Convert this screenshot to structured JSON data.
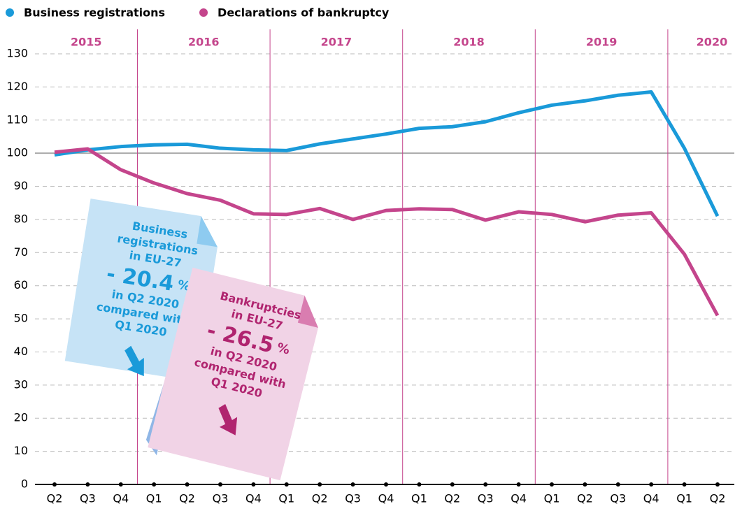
{
  "chart_data": {
    "type": "line",
    "categories": [
      "Q2",
      "Q3",
      "Q4",
      "Q1",
      "Q2",
      "Q3",
      "Q4",
      "Q1",
      "Q2",
      "Q3",
      "Q4",
      "Q1",
      "Q2",
      "Q3",
      "Q4",
      "Q1",
      "Q2",
      "Q3",
      "Q4",
      "Q1",
      "Q2"
    ],
    "year_groups": [
      {
        "label": "2015",
        "count": 3
      },
      {
        "label": "2016",
        "count": 4
      },
      {
        "label": "2017",
        "count": 4
      },
      {
        "label": "2018",
        "count": 4
      },
      {
        "label": "2019",
        "count": 4
      },
      {
        "label": "2020",
        "count": 2
      }
    ],
    "series": [
      {
        "name": "Business registrations",
        "color": "#1a9ad9",
        "values": [
          99.5,
          101,
          102,
          102.5,
          102.7,
          101.5,
          101,
          100.8,
          102.8,
          104.3,
          105.8,
          107.5,
          108,
          109.5,
          112.2,
          114.5,
          115.8,
          117.5,
          118.5,
          101.5,
          81
        ]
      },
      {
        "name": "Declarations of bankruptcy",
        "color": "#c4458c",
        "values": [
          100.3,
          101.3,
          95,
          91,
          87.8,
          85.8,
          81.7,
          81.5,
          83.3,
          80,
          82.7,
          83.2,
          83,
          79.8,
          82.3,
          81.5,
          79.3,
          81.3,
          82,
          69.5,
          51
        ]
      }
    ],
    "ylim": [
      0,
      130
    ],
    "yticks": [
      0,
      10,
      20,
      30,
      40,
      50,
      60,
      70,
      80,
      90,
      100,
      110,
      120,
      130
    ],
    "baseline": 100,
    "grid": true,
    "legend": "top-left",
    "annotations": [
      {
        "lines": [
          "Business",
          "registrations",
          "in EU-27"
        ],
        "value_text": "- 20.4",
        "unit": "%",
        "after": [
          "in Q2 2020",
          "compared with",
          "Q1 2020"
        ],
        "color": "#1a9ad9"
      },
      {
        "lines": [
          "Bankruptcies",
          "in  EU-27"
        ],
        "value_text": "- 26.5",
        "unit": "%",
        "after": [
          "in Q2 2020",
          "compared with",
          "Q1 2020"
        ],
        "color": "#b0246f"
      }
    ]
  }
}
